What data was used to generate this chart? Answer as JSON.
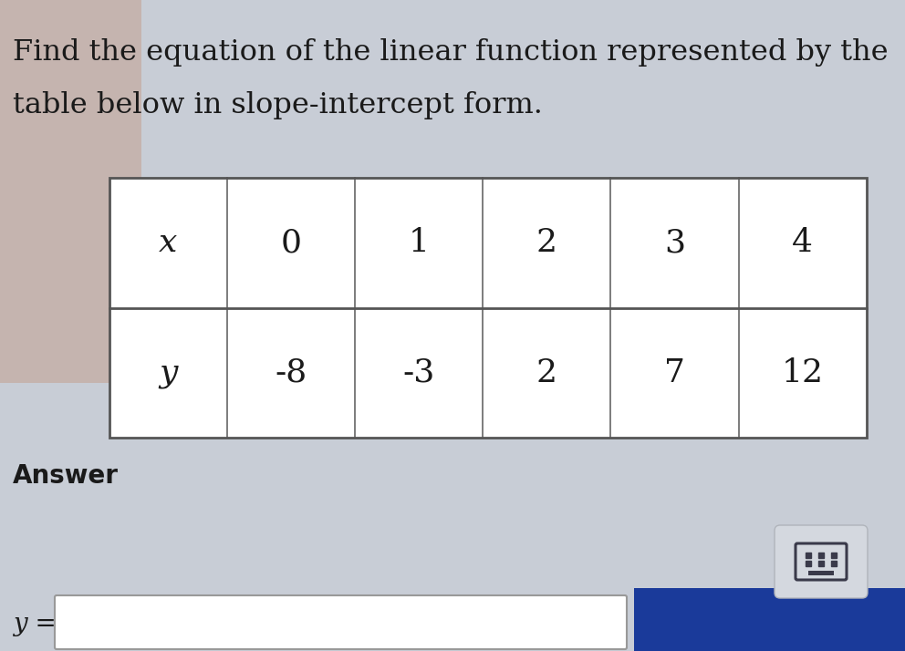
{
  "title_line1": "Find the equation of the linear function represented by the",
  "title_line2": "table below in slope-intercept form.",
  "title_fontsize": 23,
  "title_color": "#1a1a1a",
  "background_color": "#c8cdd6",
  "table_bg": "#ffffff",
  "header_row": [
    "x",
    "0",
    "1",
    "2",
    "3",
    "4"
  ],
  "data_row": [
    "y",
    "-8",
    "-3",
    "2",
    "7",
    "12"
  ],
  "answer_label": "Answer",
  "answer_label_fontsize": 20,
  "y_equals": "y =",
  "input_box_color": "#ffffff",
  "button_color": "#1a3a9a",
  "warm_patch_color": "#c4a090",
  "warm_patch_alpha": 0.55
}
